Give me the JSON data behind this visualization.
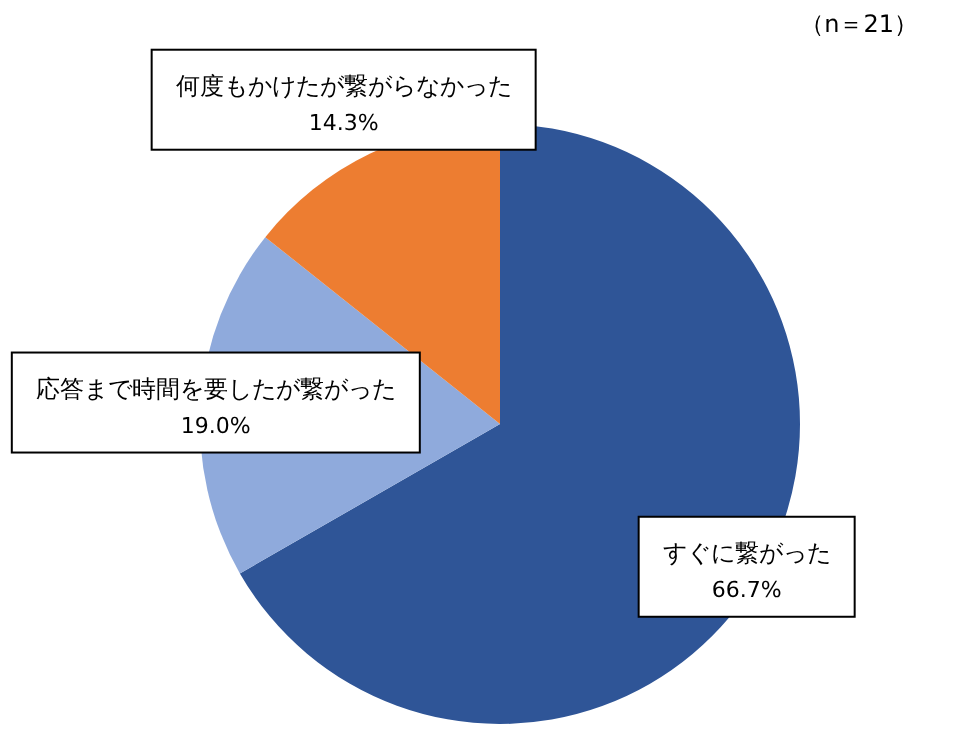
{
  "chart_data": {
    "type": "pie",
    "categories": [
      "すぐに繋がった",
      "応答まで時間を要したが繋がった",
      "何度もかけたが繋がらなかった"
    ],
    "values": [
      66.7,
      19.0,
      14.3
    ],
    "colors": [
      "#2f5597",
      "#8faadc",
      "#ed7d31"
    ],
    "value_labels": [
      "66.7%",
      "19.0%",
      "14.3%"
    ],
    "annotations": [
      "（n＝21）"
    ]
  }
}
